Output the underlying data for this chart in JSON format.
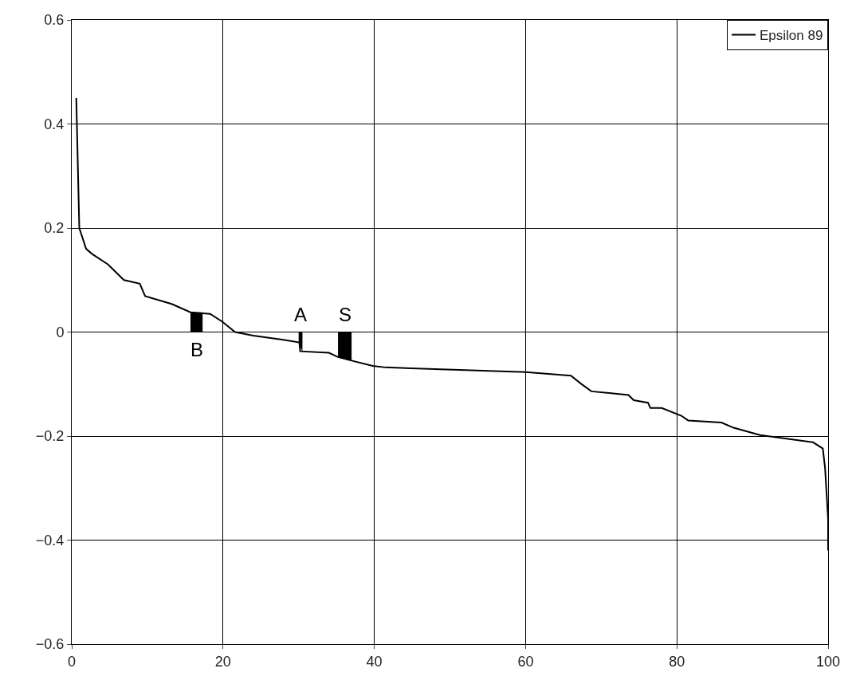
{
  "chart_data": {
    "type": "line",
    "xlim": [
      0,
      100
    ],
    "ylim": [
      -0.6,
      0.6
    ],
    "xticks": [
      0,
      20,
      40,
      60,
      80,
      100
    ],
    "yticks": [
      -0.6,
      -0.4,
      -0.2,
      0,
      0.2,
      0.4,
      0.6
    ],
    "grid": true,
    "legend": "top right",
    "line_style": "solid",
    "marker": "none",
    "series": [
      {
        "name": "Epsilon 89",
        "color": "#000000",
        "x": [
          0.6,
          1.0,
          1.9,
          2.7,
          4.8,
          6.9,
          9.0,
          9.7,
          13.2,
          15.7,
          18.3,
          19.9,
          21.6,
          24,
          28,
          30.1,
          30.2,
          34,
          35.2,
          37,
          39.8,
          41.5,
          60,
          66,
          67.3,
          68.7,
          73.6,
          74.3,
          76.2,
          76.5,
          78,
          80.6,
          81.5,
          85.9,
          87.5,
          91,
          98,
          99.3,
          99.6,
          100,
          100
        ],
        "values": [
          0.45,
          0.2,
          0.16,
          0.15,
          0.13,
          0.1,
          0.093,
          0.069,
          0.054,
          0.038,
          0.035,
          0.02,
          0.0,
          -0.007,
          -0.015,
          -0.02,
          -0.037,
          -0.04,
          -0.048,
          -0.055,
          -0.065,
          -0.068,
          -0.077,
          -0.084,
          -0.099,
          -0.114,
          -0.121,
          -0.131,
          -0.136,
          -0.146,
          -0.146,
          -0.161,
          -0.17,
          -0.174,
          -0.184,
          -0.198,
          -0.212,
          -0.224,
          -0.262,
          -0.36,
          -0.42
        ]
      },
      {
        "type": "area",
        "color": "#000000",
        "x": [
          15.7,
          17.3
        ],
        "values": [
          0.038,
          0.036
        ]
      },
      {
        "type": "area",
        "color": "#000000",
        "x": [
          30.0,
          30.5
        ],
        "values": [
          -0.02,
          -0.037
        ]
      },
      {
        "type": "area",
        "color": "#000000",
        "x": [
          35.2,
          37
        ],
        "values": [
          -0.048,
          -0.055
        ]
      }
    ],
    "annotations": [
      "B",
      "A",
      "S"
    ]
  }
}
